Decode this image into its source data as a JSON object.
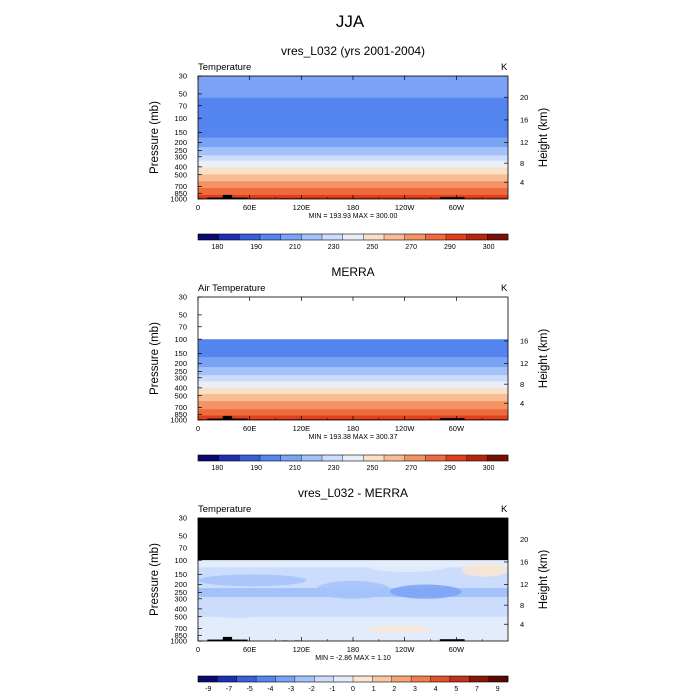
{
  "figure": {
    "title": "JJA"
  },
  "chart_data": [
    {
      "type": "heatmap",
      "panel_title": "vres_L032 (yrs 2001-2004)",
      "variable": "Temperature",
      "units": "K",
      "ylabel": "Pressure (mb)",
      "ylabel_right": "Height (km)",
      "x_ticks": [
        "0",
        "60E",
        "120E",
        "180",
        "120W",
        "60W"
      ],
      "y_ticks": [
        "30",
        "50",
        "70",
        "100",
        "150",
        "200",
        "250",
        "300",
        "400",
        "500",
        "700",
        "850",
        "1000"
      ],
      "height_ticks": [
        "4",
        "8",
        "12",
        "16",
        "20"
      ],
      "stats": "MIN = 193.93  MAX = 300.00",
      "min": 193.93,
      "max": 300.0,
      "top_level_mb": 30,
      "colorbar": {
        "labels": [
          "180",
          "190",
          "210",
          "230",
          "250",
          "270",
          "290",
          "300"
        ],
        "colors": [
          "#0a0a6e",
          "#1f2fb5",
          "#3a5fd9",
          "#5585ef",
          "#7aa3f5",
          "#a4c2fa",
          "#cbdcfc",
          "#e9eef8",
          "#fbe0c8",
          "#f8bd94",
          "#f49464",
          "#ef6a3d",
          "#e0411c",
          "#b8250f",
          "#7a1005"
        ]
      },
      "profile": [
        {
          "p": 30,
          "v": 219
        },
        {
          "p": 50,
          "v": 212
        },
        {
          "p": 70,
          "v": 206
        },
        {
          "p": 100,
          "v": 200
        },
        {
          "p": 150,
          "v": 205
        },
        {
          "p": 200,
          "v": 215
        },
        {
          "p": 250,
          "v": 224
        },
        {
          "p": 300,
          "v": 233
        },
        {
          "p": 400,
          "v": 249
        },
        {
          "p": 500,
          "v": 261
        },
        {
          "p": 700,
          "v": 277
        },
        {
          "p": 850,
          "v": 287
        },
        {
          "p": 1000,
          "v": 297
        }
      ]
    },
    {
      "type": "heatmap",
      "panel_title": "MERRA",
      "variable": "Air Temperature",
      "units": "K",
      "ylabel": "Pressure (mb)",
      "ylabel_right": "Height (km)",
      "x_ticks": [
        "0",
        "60E",
        "120E",
        "180",
        "120W",
        "60W"
      ],
      "y_ticks": [
        "30",
        "50",
        "70",
        "100",
        "150",
        "200",
        "250",
        "300",
        "400",
        "500",
        "700",
        "850",
        "1000"
      ],
      "height_ticks": [
        "4",
        "8",
        "12",
        "16"
      ],
      "stats": "MIN = 193.38  MAX = 300.37",
      "min": 193.38,
      "max": 300.37,
      "top_level_mb": 100,
      "colorbar": {
        "labels": [
          "180",
          "190",
          "210",
          "230",
          "250",
          "270",
          "290",
          "300"
        ],
        "colors": [
          "#0a0a6e",
          "#1f2fb5",
          "#3a5fd9",
          "#5585ef",
          "#7aa3f5",
          "#a4c2fa",
          "#cbdcfc",
          "#e9eef8",
          "#fbe0c8",
          "#f8bd94",
          "#f49464",
          "#ef6a3d",
          "#e0411c",
          "#b8250f",
          "#7a1005"
        ]
      },
      "profile": [
        {
          "p": 100,
          "v": 200
        },
        {
          "p": 150,
          "v": 206
        },
        {
          "p": 200,
          "v": 216
        },
        {
          "p": 250,
          "v": 225
        },
        {
          "p": 300,
          "v": 234
        },
        {
          "p": 400,
          "v": 250
        },
        {
          "p": 500,
          "v": 262
        },
        {
          "p": 700,
          "v": 278
        },
        {
          "p": 850,
          "v": 288
        },
        {
          "p": 1000,
          "v": 297
        }
      ]
    },
    {
      "type": "heatmap",
      "panel_title": "vres_L032 - MERRA",
      "variable": "Temperature",
      "units": "K",
      "ylabel": "Pressure (mb)",
      "ylabel_right": "Height (km)",
      "x_ticks": [
        "0",
        "60E",
        "120E",
        "180",
        "120W",
        "60W"
      ],
      "y_ticks": [
        "30",
        "50",
        "70",
        "100",
        "150",
        "200",
        "250",
        "300",
        "400",
        "500",
        "700",
        "850",
        "1000"
      ],
      "height_ticks": [
        "4",
        "8",
        "12",
        "16",
        "20"
      ],
      "stats": "MIN =  -2.86  MAX =   1.10",
      "min": -2.86,
      "max": 1.1,
      "top_level_mb": 30,
      "missing_above_mb": 100,
      "colorbar": {
        "labels": [
          "-9",
          "-7",
          "-5",
          "-4",
          "-3",
          "-2",
          "-1",
          "0",
          "1",
          "2",
          "3",
          "4",
          "5",
          "7",
          "9"
        ],
        "colors": [
          "#0a0a6e",
          "#1f2fb5",
          "#3a5fd9",
          "#5585ef",
          "#7aa3f5",
          "#a4c2fa",
          "#cbdcfc",
          "#e3ecfa",
          "#fbe6d2",
          "#f8c8a4",
          "#f4a476",
          "#ef7d4e",
          "#e0532a",
          "#c0321a",
          "#8a1708",
          "#5a0802"
        ]
      },
      "profile": [
        {
          "p": 100,
          "v": -0.8
        },
        {
          "p": 150,
          "v": -1.2
        },
        {
          "p": 200,
          "v": -1.8
        },
        {
          "p": 250,
          "v": -2.2
        },
        {
          "p": 300,
          "v": -1.9
        },
        {
          "p": 400,
          "v": -1.3
        },
        {
          "p": 500,
          "v": -1.0
        },
        {
          "p": 700,
          "v": -0.6
        },
        {
          "p": 850,
          "v": -0.4
        },
        {
          "p": 1000,
          "v": -0.2
        }
      ]
    }
  ]
}
